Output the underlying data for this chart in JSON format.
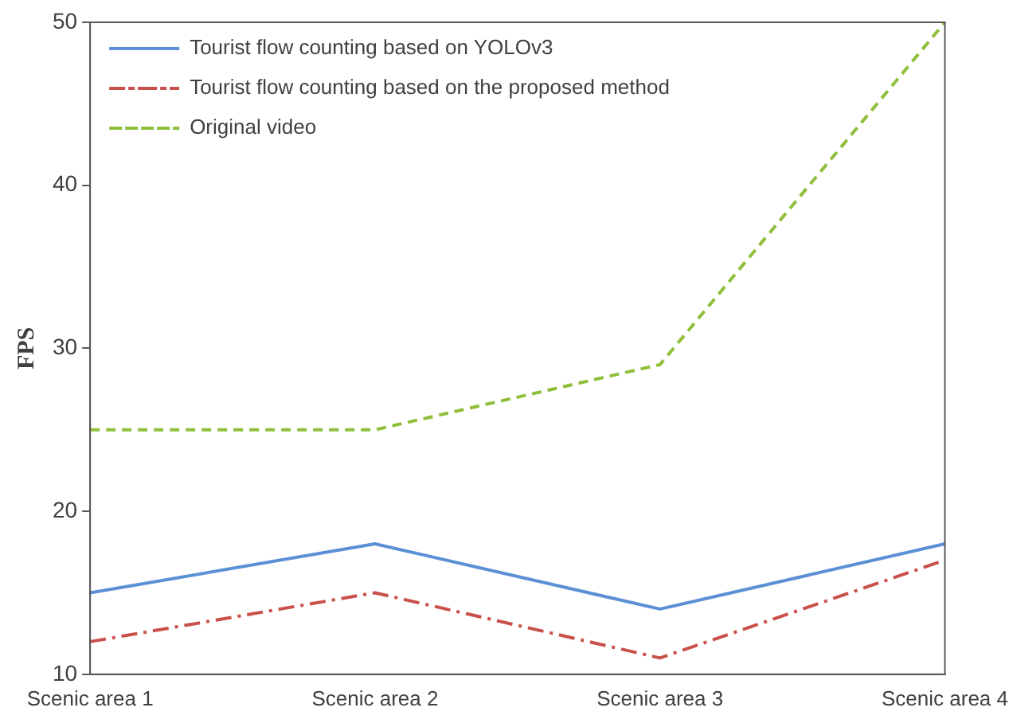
{
  "chart_data": {
    "type": "line",
    "ylabel": "FPS",
    "categories": [
      "Scenic area 1",
      "Scenic area 2",
      "Scenic area 3",
      "Scenic area 4"
    ],
    "ylim": [
      10,
      50
    ],
    "yticks": [
      10,
      20,
      30,
      40,
      50
    ],
    "grid": false,
    "legend": "top left",
    "marker": "none",
    "series": [
      {
        "name": "Tourist flow counting based on YOLOv3",
        "color": "#5b8fd6",
        "line_style": "solid",
        "values": [
          15,
          18,
          14,
          18
        ]
      },
      {
        "name": "Tourist flow counting based on the proposed method",
        "color": "#c9504a",
        "line_style": "dashdot",
        "values": [
          12,
          15,
          11,
          17
        ]
      },
      {
        "name": "Original video",
        "color": "#8fbf3a",
        "line_style": "dashed",
        "values": [
          25,
          25,
          29,
          50
        ]
      }
    ]
  }
}
